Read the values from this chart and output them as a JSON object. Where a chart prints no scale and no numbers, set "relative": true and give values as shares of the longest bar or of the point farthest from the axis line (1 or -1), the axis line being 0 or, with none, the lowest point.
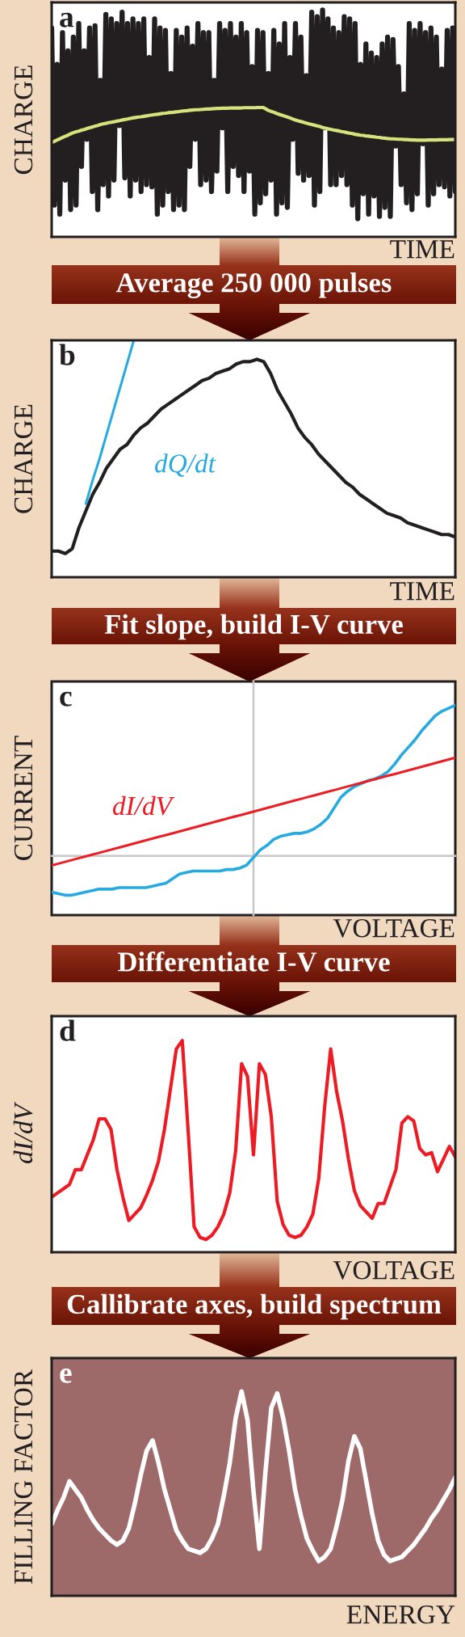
{
  "chart_data": [
    {
      "type": "line",
      "title": "a",
      "xlabel": "TIME",
      "ylabel": "CHARGE",
      "relative": true,
      "categories": [
        null,
        null,
        null,
        null,
        null,
        null,
        null,
        null,
        null,
        null,
        null,
        null,
        null,
        null,
        null,
        null,
        null,
        null,
        null,
        null,
        null,
        null,
        null,
        null,
        null,
        null,
        null,
        null,
        null,
        null,
        null,
        null,
        null,
        null,
        null,
        null,
        null,
        null,
        null,
        null,
        null,
        null,
        null,
        null,
        null,
        null,
        null,
        null,
        null,
        null,
        null,
        null,
        null,
        null,
        null,
        null,
        null,
        null,
        null,
        null,
        null,
        null,
        null,
        null,
        null,
        null,
        null,
        null,
        null,
        null,
        null,
        null,
        null,
        null,
        null,
        null,
        null,
        null,
        null,
        null,
        null,
        null,
        null,
        null,
        null,
        null,
        null,
        null,
        null,
        null,
        null,
        null,
        null,
        null,
        null,
        null,
        null,
        null,
        null,
        null,
        null,
        null,
        null,
        null,
        null,
        null,
        null,
        null,
        null,
        null,
        null,
        null,
        null,
        null,
        null,
        null,
        null,
        null,
        null,
        null,
        null,
        null,
        null,
        null,
        null,
        null,
        null,
        null,
        null,
        null,
        null,
        null,
        null,
        null,
        null,
        null,
        null,
        null,
        null,
        null,
        null,
        null,
        null,
        null,
        null,
        null,
        null,
        null,
        null,
        null
      ],
      "series": [
        {
          "color": "#231f20",
          "values": [
            0.92,
            0.14,
            0.76,
            0.1,
            0.9,
            0.25,
            0.82,
            0.12,
            0.88,
            0.14,
            0.94,
            0.31,
            0.82,
            0.43,
            0.92,
            0.2,
            0.93,
            0.12,
            0.69,
            0.23,
            0.98,
            0.18,
            0.96,
            0.25,
            0.94,
            0.49,
            0.99,
            0.26,
            0.94,
            0.18,
            0.96,
            0.25,
            0.94,
            0.2,
            0.96,
            0.23,
            0.79,
            0.22,
            0.96,
            0.1,
            0.92,
            0.14,
            0.91,
            0.2,
            0.72,
            0.12,
            0.91,
            0.14,
            0.88,
            0.12,
            0.92,
            0.31,
            0.84,
            0.43,
            0.94,
            0.23,
            0.9,
            0.25,
            0.9,
            0.2,
            0.69,
            0.29,
            0.94,
            0.48,
            0.91,
            0.2,
            0.94,
            0.31,
            0.88,
            0.27,
            0.94,
            0.2,
            0.9,
            0.29,
            0.75,
            0.1,
            0.91,
            0.15,
            0.9,
            0.19,
            0.72,
            0.25,
            0.91,
            0.1,
            0.85,
            0.15,
            0.94,
            0.13,
            0.79,
            0.43,
            0.94,
            0.28,
            0.88,
            0.25,
            0.71,
            0.27,
            0.99,
            0.14,
            0.97,
            0.2,
            1,
            0.48,
            0.96,
            0.23,
            0.92,
            0.23,
            0.9,
            0.27,
            0.97,
            0.23,
            0.96,
            0.14,
            0.94,
            0.08,
            0.76,
            0.19,
            0.85,
            0.1,
            0.81,
            0.18,
            0.79,
            0.09,
            0.85,
            0.13,
            0.88,
            0.09,
            0.87,
            0.4,
            0.75,
            0.23,
            0.63,
            0.15,
            0.94,
            0.12,
            0.91,
            0.19,
            0.94,
            0.41,
            0.9,
            0.14,
            0.92,
            0.19,
            0.88,
            0.23,
            0.74,
            0.22,
            0.91,
            0.18,
            0.92,
            0.2
          ]
        },
        {
          "color": "#d6e37c",
          "values": [
            0.416,
            0.421,
            0.427,
            0.432,
            0.438,
            0.443,
            0.448,
            0.454,
            0.459,
            0.463,
            0.466,
            0.47,
            0.473,
            0.477,
            0.481,
            0.484,
            0.488,
            0.491,
            0.495,
            0.498,
            0.5,
            0.503,
            0.505,
            0.507,
            0.51,
            0.512,
            0.515,
            0.517,
            0.519,
            0.522,
            0.524,
            0.526,
            0.528,
            0.529,
            0.531,
            0.533,
            0.535,
            0.537,
            0.539,
            0.54,
            0.542,
            0.544,
            0.545,
            0.547,
            0.548,
            0.549,
            0.551,
            0.552,
            0.554,
            0.555,
            0.556,
            0.558,
            0.559,
            0.56,
            0.56,
            0.561,
            0.562,
            0.563,
            0.563,
            0.564,
            0.565,
            0.566,
            0.566,
            0.567,
            0.567,
            0.567,
            0.568,
            0.568,
            0.568,
            0.568,
            0.568,
            0.569,
            0.569,
            0.569,
            0.569,
            0.569,
            0.57,
            0.57,
            0.57,
            0.564,
            0.557,
            0.553,
            0.549,
            0.544,
            0.54,
            0.536,
            0.532,
            0.528,
            0.524,
            0.519,
            0.515,
            0.511,
            0.508,
            0.505,
            0.501,
            0.498,
            0.495,
            0.492,
            0.489,
            0.486,
            0.482,
            0.479,
            0.476,
            0.474,
            0.471,
            0.469,
            0.467,
            0.464,
            0.462,
            0.459,
            0.457,
            0.455,
            0.452,
            0.45,
            0.448,
            0.447,
            0.445,
            0.444,
            0.442,
            0.441,
            0.439,
            0.438,
            0.436,
            0.435,
            0.433,
            0.432,
            0.432,
            0.431,
            0.43,
            0.43,
            0.429,
            0.429,
            0.428,
            0.427,
            0.427,
            0.426,
            0.426,
            0.426,
            0.426,
            0.427,
            0.427,
            0.427,
            0.427,
            0.428,
            0.428,
            0.428,
            0.428,
            0.429,
            0.429,
            0.429
          ]
        }
      ],
      "annotations": [
        "Average 250 000 pulses"
      ]
    },
    {
      "type": "line",
      "title": "b",
      "xlabel": "TIME",
      "ylabel": "CHARGE",
      "relative": true,
      "categories": [
        null,
        null,
        null,
        null,
        null,
        null,
        null,
        null,
        null,
        null,
        null,
        null,
        null,
        null,
        null,
        null,
        null,
        null,
        null,
        null,
        null,
        null,
        null,
        null,
        null,
        null,
        null,
        null,
        null,
        null,
        null,
        null,
        null,
        null,
        null,
        null,
        null,
        null,
        null,
        null,
        null,
        null,
        null,
        null,
        null,
        null,
        null,
        null,
        null,
        null,
        null,
        null,
        null,
        null,
        null,
        null,
        null,
        null,
        null,
        null
      ],
      "series": [
        {
          "color": "#231f20",
          "values": [
            0.11,
            0.11,
            0.1,
            0.12,
            0.21,
            0.28,
            0.35,
            0.4,
            0.46,
            0.5,
            0.54,
            0.56,
            0.6,
            0.63,
            0.65,
            0.68,
            0.71,
            0.73,
            0.75,
            0.77,
            0.79,
            0.81,
            0.83,
            0.84,
            0.86,
            0.87,
            0.88,
            0.9,
            0.91,
            0.91,
            0.92,
            0.91,
            0.86,
            0.79,
            0.74,
            0.69,
            0.63,
            0.59,
            0.56,
            0.52,
            0.49,
            0.46,
            0.43,
            0.4,
            0.38,
            0.35,
            0.33,
            0.31,
            0.29,
            0.27,
            0.26,
            0.25,
            0.23,
            0.22,
            0.21,
            0.2,
            0.19,
            0.18,
            0.18,
            0.17
          ]
        },
        {
          "name": "dQ/dt",
          "color": "#27aae1",
          "values": [
            null,
            null,
            null,
            null,
            null,
            0.31,
            0.41,
            0.5,
            0.6,
            0.7,
            0.8,
            0.9,
            1,
            null,
            null,
            null,
            null,
            null,
            null,
            null,
            null,
            null,
            null,
            null,
            null,
            null,
            null,
            null,
            null,
            null,
            null,
            null,
            null,
            null,
            null,
            null,
            null,
            null,
            null,
            null,
            null,
            null,
            null,
            null,
            null,
            null,
            null,
            null,
            null,
            null,
            null,
            null,
            null,
            null,
            null,
            null,
            null,
            null,
            null,
            null
          ]
        }
      ],
      "annotations": [
        "Fit slope, build I-V curve"
      ]
    },
    {
      "type": "line",
      "title": "c",
      "xlabel": "VOLTAGE",
      "ylabel": "CURRENT",
      "relative": true,
      "categories": [
        null,
        null,
        null,
        null,
        null,
        null,
        null,
        null,
        null,
        null,
        null,
        null,
        null,
        null,
        null,
        null,
        null,
        null,
        null,
        null,
        null,
        null,
        null,
        null,
        null,
        null,
        null,
        null,
        null,
        null,
        null,
        null,
        null,
        null,
        null,
        null,
        null,
        null,
        null,
        null,
        null,
        null,
        null,
        null,
        null,
        null,
        null,
        null,
        null,
        null,
        null,
        null,
        null,
        null,
        null,
        null,
        null,
        null,
        null,
        null,
        null
      ],
      "series": [
        {
          "color": "#27aae1",
          "values": [
            -0.24,
            -0.25,
            -0.26,
            -0.26,
            -0.25,
            -0.24,
            -0.23,
            -0.22,
            -0.22,
            -0.22,
            -0.21,
            -0.21,
            -0.21,
            -0.21,
            -0.21,
            -0.2,
            -0.19,
            -0.18,
            -0.15,
            -0.12,
            -0.11,
            -0.1,
            -0.1,
            -0.1,
            -0.1,
            -0.1,
            -0.09,
            -0.09,
            -0.08,
            -0.06,
            -0.01,
            0.04,
            0.07,
            0.11,
            0.13,
            0.14,
            0.15,
            0.15,
            0.16,
            0.18,
            0.21,
            0.25,
            0.32,
            0.39,
            0.43,
            0.46,
            0.48,
            0.5,
            0.51,
            0.53,
            0.56,
            0.61,
            0.67,
            0.72,
            0.77,
            0.83,
            0.88,
            0.93,
            0.96,
            0.98,
            1
          ]
        },
        {
          "name": "dI/dV",
          "color": "#ed1c24",
          "values": [
            -0.063,
            -0.051,
            -0.039,
            -0.027,
            -0.015,
            -0.003,
            0.008,
            0.02,
            0.032,
            0.044,
            0.056,
            0.068,
            0.08,
            0.092,
            0.104,
            0.116,
            0.128,
            0.139,
            0.151,
            0.163,
            0.175,
            0.187,
            0.199,
            0.211,
            0.223,
            0.235,
            0.247,
            0.259,
            0.27,
            0.282,
            0.294,
            0.306,
            0.318,
            0.33,
            0.342,
            0.354,
            0.366,
            0.378,
            0.39,
            0.401,
            0.413,
            0.425,
            0.437,
            0.449,
            0.461,
            0.473,
            0.485,
            0.497,
            0.509,
            0.521,
            0.533,
            0.544,
            0.556,
            0.568,
            0.58,
            0.592,
            0.604,
            0.616,
            0.628,
            0.64,
            0.652
          ]
        }
      ],
      "annotations": [
        "Differentiate I-V curve"
      ]
    },
    {
      "type": "line",
      "title": "d",
      "xlabel": "VOLTAGE",
      "ylabel": "dI/dV",
      "relative": true,
      "categories": [
        null,
        null,
        null,
        null,
        null,
        null,
        null,
        null,
        null,
        null,
        null,
        null,
        null,
        null,
        null,
        null,
        null,
        null,
        null,
        null,
        null,
        null,
        null,
        null,
        null,
        null,
        null,
        null,
        null,
        null,
        null,
        null,
        null,
        null,
        null,
        null,
        null,
        null,
        null,
        null,
        null,
        null,
        null,
        null,
        null,
        null,
        null,
        null,
        null,
        null,
        null,
        null,
        null,
        null,
        null,
        null,
        null,
        null,
        null,
        null,
        null,
        null,
        null,
        null,
        null,
        null,
        null,
        null,
        null
      ],
      "series": [
        {
          "color": "#ed1c24",
          "values": [
            0.26,
            0.28,
            0.3,
            0.32,
            0.39,
            0.39,
            0.46,
            0.53,
            0.63,
            0.63,
            0.58,
            0.39,
            0.26,
            0.15,
            0.18,
            0.21,
            0.27,
            0.34,
            0.43,
            0.58,
            0.77,
            0.96,
            1,
            0.57,
            0.12,
            0.07,
            0.06,
            0.08,
            0.12,
            0.18,
            0.28,
            0.48,
            0.89,
            0.83,
            0.46,
            0.89,
            0.84,
            0.64,
            0.24,
            0.13,
            0.08,
            0.07,
            0.08,
            0.12,
            0.18,
            0.35,
            0.69,
            0.96,
            0.76,
            0.62,
            0.44,
            0.29,
            0.22,
            0.19,
            0.16,
            0.23,
            0.23,
            0.31,
            0.39,
            0.61,
            0.64,
            0.62,
            0.49,
            0.46,
            0.47,
            0.38,
            0.44,
            0.5,
            0.45
          ]
        }
      ],
      "annotations": [
        "Callibrate axes, build spectrum"
      ]
    },
    {
      "type": "line",
      "title": "e",
      "xlabel": "ENERGY",
      "ylabel": "FILLING FACTOR",
      "relative": true,
      "categories": [
        null,
        null,
        null,
        null,
        null,
        null,
        null,
        null,
        null,
        null,
        null,
        null,
        null,
        null,
        null,
        null,
        null,
        null,
        null,
        null,
        null,
        null,
        null,
        null,
        null,
        null,
        null,
        null,
        null,
        null,
        null,
        null,
        null,
        null,
        null,
        null,
        null,
        null,
        null,
        null,
        null,
        null,
        null,
        null,
        null,
        null,
        null,
        null,
        null,
        null,
        null,
        null,
        null,
        null,
        null,
        null,
        null,
        null,
        null,
        null,
        null,
        null,
        null,
        null,
        null,
        null,
        null,
        null,
        null
      ],
      "series": [
        {
          "color": "#ffffff",
          "values": [
            0.35,
            0.42,
            0.48,
            0.56,
            0.52,
            0.48,
            0.42,
            0.37,
            0.33,
            0.3,
            0.27,
            0.25,
            0.27,
            0.33,
            0.45,
            0.59,
            0.71,
            0.76,
            0.65,
            0.52,
            0.42,
            0.32,
            0.27,
            0.23,
            0.22,
            0.21,
            0.23,
            0.28,
            0.35,
            0.49,
            0.65,
            0.87,
            1,
            0.86,
            0.51,
            0.23,
            0.6,
            0.92,
            0.99,
            0.87,
            0.71,
            0.52,
            0.39,
            0.28,
            0.22,
            0.17,
            0.19,
            0.23,
            0.34,
            0.47,
            0.66,
            0.78,
            0.72,
            0.56,
            0.4,
            0.27,
            0.2,
            0.17,
            0.18,
            0.19,
            0.22,
            0.25,
            0.29,
            0.33,
            0.38,
            0.42,
            0.47,
            0.52,
            0.58
          ]
        }
      ]
    }
  ]
}
